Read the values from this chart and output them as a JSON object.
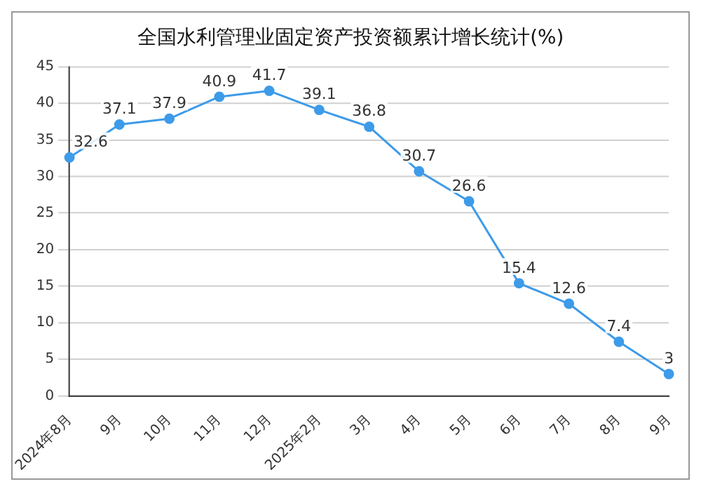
{
  "chart_data": {
    "type": "line",
    "title": "全国水利管理业固定资产投资额累计增长统计(%)",
    "categories": [
      "2024年8月",
      "9月",
      "10月",
      "11月",
      "12月",
      "2025年2月",
      "3月",
      "4月",
      "5月",
      "6月",
      "7月",
      "8月",
      "9月"
    ],
    "series": [
      {
        "color": "#3d9be9",
        "values": [
          32.6,
          37.1,
          37.9,
          40.9,
          41.7,
          39.1,
          36.8,
          30.7,
          26.6,
          15.4,
          12.6,
          7.4,
          3
        ]
      }
    ],
    "ylim": [
      0,
      45
    ],
    "yticks": [
      0,
      5,
      10,
      15,
      20,
      25,
      30,
      35,
      40,
      45
    ],
    "grid": "y",
    "marker": "circle",
    "line_style": "solid",
    "data_labels": true,
    "legend": false
  }
}
